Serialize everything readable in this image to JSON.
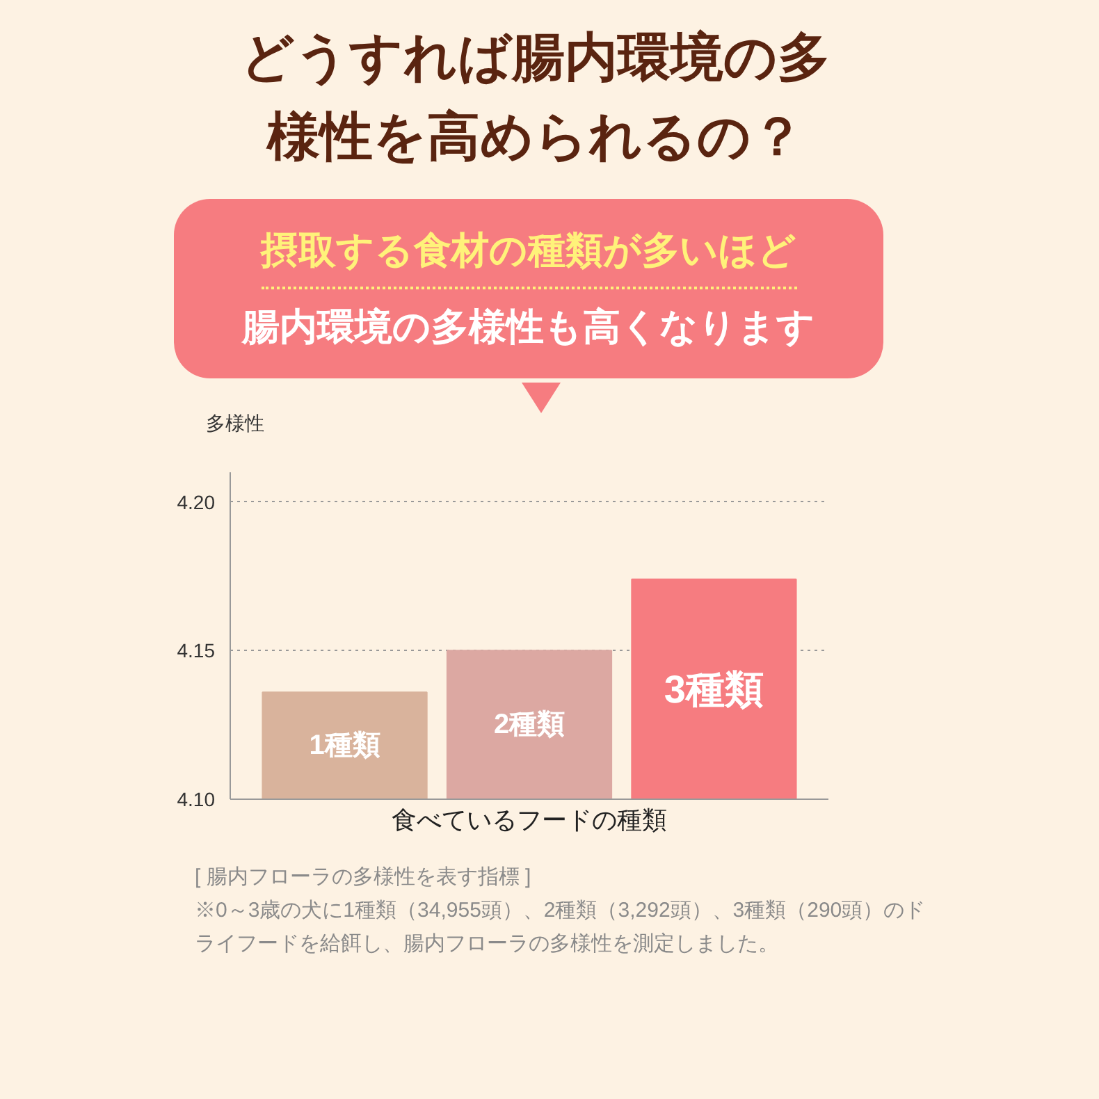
{
  "chart_data": {
    "type": "bar",
    "title": "どうすれば腸内環境の多様性を高められるの？",
    "subtitle": "摂取する食材の種類が多いほど",
    "ylabel": "多様性",
    "xlabel": "食べているフードの種類",
    "categories": [
      "1種類",
      "2種類",
      "3種類"
    ],
    "values": [
      4.136,
      4.15,
      4.174
    ],
    "colors": [
      "#d9b39c",
      "#dca8a2",
      "#f67c80"
    ],
    "ylim": [
      4.1,
      4.21
    ],
    "yticks": [
      {
        "value": 4.1,
        "label": "4.10"
      },
      {
        "value": 4.15,
        "label": "4.15"
      },
      {
        "value": 4.2,
        "label": "4.20"
      }
    ],
    "grid": "y",
    "tick_labels": "y",
    "annotations": [
      "腸内環境の多様性も高くなります",
      "[ 腸内フローラの多様性を表す指標 ]",
      "※0～3歳の犬に1種類（34,955頭）、2種類（3,292頭）、3種類（290頭）のドライフードを給餌し、腸内フローラの多様性を測定しました。"
    ]
  }
}
